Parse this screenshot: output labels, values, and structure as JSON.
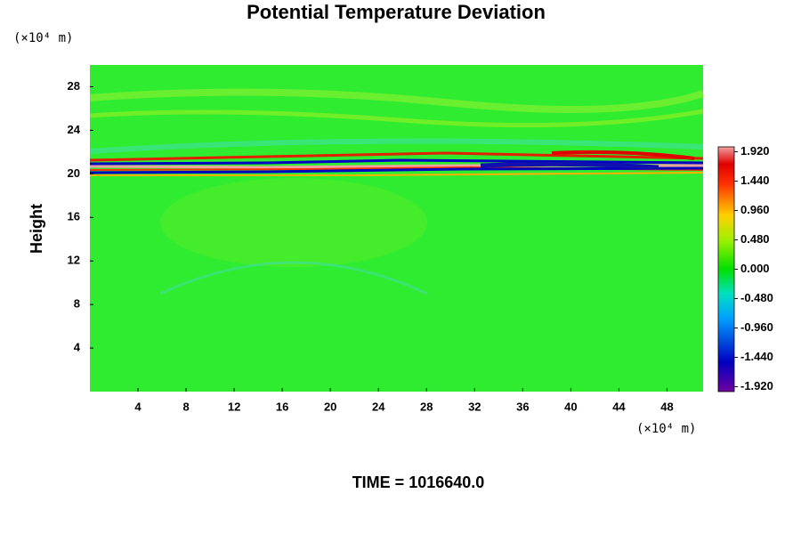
{
  "chart_data": {
    "type": "contour",
    "title": "Potential Temperature Deviation",
    "y_unit": "(×10⁴ m)",
    "x_unit": "(×10⁴ m)",
    "ylabel": "Height",
    "annotation": "TIME = 1016640.0",
    "xlim": [
      0,
      51
    ],
    "xticks": [
      4,
      8,
      12,
      16,
      20,
      24,
      28,
      32,
      36,
      40,
      44,
      48
    ],
    "ylim": [
      0,
      30
    ],
    "yticks": [
      4,
      8,
      12,
      16,
      20,
      24,
      28
    ],
    "clim": [
      -2.0,
      2.0
    ],
    "cticks": [
      {
        "value": 1.92,
        "label": "1.920"
      },
      {
        "value": 1.44,
        "label": "1.440"
      },
      {
        "value": 0.96,
        "label": "0.960"
      },
      {
        "value": 0.48,
        "label": "0.480"
      },
      {
        "value": 0,
        "label": "0.000"
      },
      {
        "value": -0.48,
        "label": "-0.480"
      },
      {
        "value": -0.96,
        "label": "-0.960"
      },
      {
        "value": -1.44,
        "label": "-1.440"
      },
      {
        "value": -1.92,
        "label": "-1.920"
      }
    ]
  }
}
